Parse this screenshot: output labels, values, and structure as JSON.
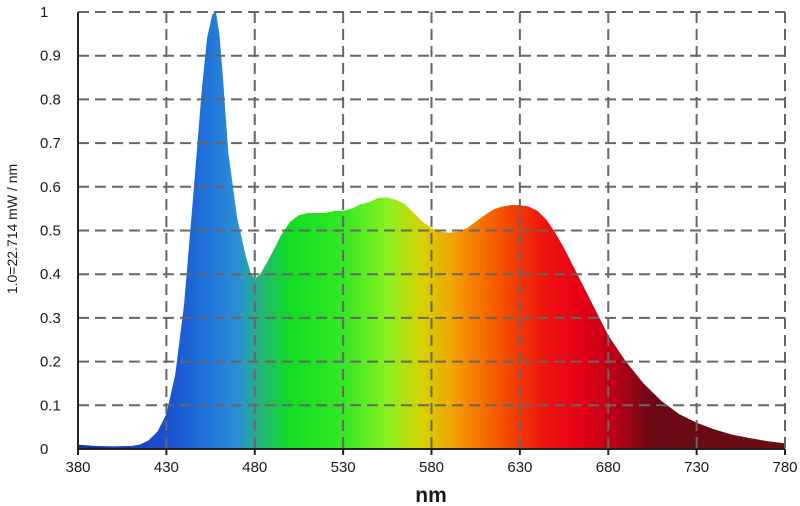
{
  "chart_data": {
    "type": "area",
    "title": "",
    "xlabel": "nm",
    "ylabel": "1.0=22.714 mW / nm",
    "xlim": [
      380,
      780
    ],
    "ylim": [
      0,
      1
    ],
    "grid": true,
    "x_ticks": [
      "380",
      "430",
      "480",
      "530",
      "580",
      "630",
      "680",
      "730",
      "780"
    ],
    "y_ticks": [
      "0",
      "0.1",
      "0.2",
      "0.3",
      "0.4",
      "0.5",
      "0.6",
      "0.7",
      "0.8",
      "0.9",
      "1"
    ],
    "series": [
      {
        "x": [
          380,
          390,
          400,
          410,
          415,
          420,
          425,
          430,
          435,
          440,
          445,
          450,
          453,
          456,
          458,
          460,
          462,
          465,
          470,
          475,
          478,
          480,
          483,
          486,
          490,
          495,
          500,
          505,
          510,
          515,
          520,
          525,
          530,
          535,
          540,
          545,
          550,
          555,
          560,
          565,
          570,
          575,
          580,
          585,
          590,
          595,
          600,
          605,
          610,
          615,
          620,
          625,
          630,
          635,
          640,
          645,
          650,
          655,
          660,
          665,
          670,
          675,
          680,
          690,
          700,
          710,
          720,
          730,
          740,
          750,
          760,
          770,
          780
        ],
        "values": [
          0.01,
          0.007,
          0.006,
          0.007,
          0.01,
          0.02,
          0.04,
          0.08,
          0.17,
          0.33,
          0.57,
          0.82,
          0.94,
          0.995,
          1.0,
          0.95,
          0.85,
          0.68,
          0.53,
          0.44,
          0.4,
          0.39,
          0.4,
          0.42,
          0.45,
          0.49,
          0.52,
          0.535,
          0.54,
          0.54,
          0.54,
          0.545,
          0.545,
          0.55,
          0.56,
          0.565,
          0.575,
          0.575,
          0.57,
          0.56,
          0.54,
          0.52,
          0.505,
          0.497,
          0.495,
          0.497,
          0.505,
          0.52,
          0.535,
          0.548,
          0.555,
          0.558,
          0.558,
          0.555,
          0.545,
          0.525,
          0.495,
          0.46,
          0.42,
          0.38,
          0.34,
          0.3,
          0.26,
          0.2,
          0.15,
          0.11,
          0.08,
          0.06,
          0.045,
          0.033,
          0.025,
          0.018,
          0.013
        ]
      }
    ],
    "colors": {
      "gradient_stops": [
        {
          "nm": 380,
          "color": "#1133aa"
        },
        {
          "nm": 430,
          "color": "#1a4fd0"
        },
        {
          "nm": 450,
          "color": "#1f6fd9"
        },
        {
          "nm": 470,
          "color": "#2a8fd8"
        },
        {
          "nm": 485,
          "color": "#22b870"
        },
        {
          "nm": 500,
          "color": "#11dd22"
        },
        {
          "nm": 530,
          "color": "#33e822"
        },
        {
          "nm": 555,
          "color": "#88f022"
        },
        {
          "nm": 575,
          "color": "#d8d200"
        },
        {
          "nm": 595,
          "color": "#f59a00"
        },
        {
          "nm": 620,
          "color": "#f55000"
        },
        {
          "nm": 645,
          "color": "#ee1111"
        },
        {
          "nm": 665,
          "color": "#e40015"
        },
        {
          "nm": 685,
          "color": "#b60018"
        },
        {
          "nm": 705,
          "color": "#6b0a14"
        },
        {
          "nm": 780,
          "color": "#6a0d10"
        }
      ],
      "grid": "#666666",
      "axis": "#222222",
      "text": "#1a1a1a"
    }
  }
}
